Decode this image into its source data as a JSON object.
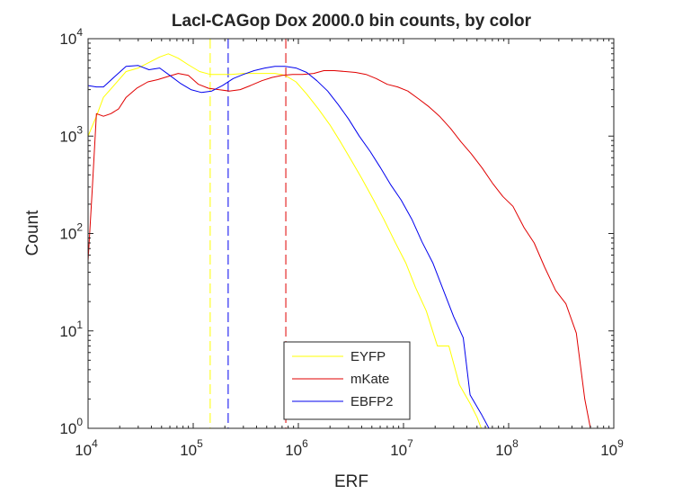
{
  "chart_data": {
    "type": "line",
    "title": "LacI-CAGop Dox 2000.0 bin counts, by color",
    "xlabel": "ERF",
    "ylabel": "Count",
    "xscale": "log",
    "yscale": "log",
    "xlim": [
      10000,
      1000000000
    ],
    "ylim": [
      1,
      10000
    ],
    "x_ticks": [
      {
        "value": 10000,
        "base": "10",
        "exp": "4"
      },
      {
        "value": 100000,
        "base": "10",
        "exp": "5"
      },
      {
        "value": 1000000,
        "base": "10",
        "exp": "6"
      },
      {
        "value": 10000000,
        "base": "10",
        "exp": "7"
      },
      {
        "value": 100000000,
        "base": "10",
        "exp": "8"
      },
      {
        "value": 1000000000,
        "base": "10",
        "exp": "9"
      }
    ],
    "y_ticks": [
      {
        "value": 1,
        "base": "10",
        "exp": "0"
      },
      {
        "value": 10,
        "base": "10",
        "exp": "1"
      },
      {
        "value": 100,
        "base": "10",
        "exp": "2"
      },
      {
        "value": 1000,
        "base": "10",
        "exp": "3"
      },
      {
        "value": 10000,
        "base": "10",
        "exp": "4"
      }
    ],
    "grid": false,
    "legend_position": "bottom-center",
    "series": [
      {
        "name": "EYFP",
        "color": "#ffff00",
        "points": [
          [
            10000,
            1000
          ],
          [
            12000,
            1600
          ],
          [
            14000,
            2500
          ],
          [
            18000,
            3400
          ],
          [
            23000,
            4600
          ],
          [
            30000,
            5000
          ],
          [
            38000,
            5700
          ],
          [
            48000,
            6500
          ],
          [
            58000,
            7000
          ],
          [
            72000,
            6300
          ],
          [
            90000,
            5400
          ],
          [
            115000,
            4600
          ],
          [
            145000,
            4300
          ],
          [
            180000,
            4300
          ],
          [
            230000,
            4300
          ],
          [
            300000,
            4400
          ],
          [
            380000,
            4400
          ],
          [
            480000,
            4400
          ],
          [
            600000,
            4400
          ],
          [
            750000,
            4200
          ],
          [
            950000,
            3600
          ],
          [
            1200000,
            2700
          ],
          [
            1550000,
            1900
          ],
          [
            2000000,
            1300
          ],
          [
            2500000,
            880
          ],
          [
            3200000,
            560
          ],
          [
            4000000,
            370
          ],
          [
            5200000,
            220
          ],
          [
            6500000,
            140
          ],
          [
            8300000,
            82
          ],
          [
            10500000,
            50
          ],
          [
            13000000,
            28
          ],
          [
            16500000,
            16
          ],
          [
            21000000,
            7.0
          ],
          [
            27000000,
            7.0
          ],
          [
            34000000,
            2.8
          ],
          [
            43000000,
            1.8
          ],
          [
            50000000,
            1.3
          ],
          [
            55000000,
            1.0
          ]
        ]
      },
      {
        "name": "mKate",
        "color": "#e00000",
        "points": [
          [
            10000,
            52
          ],
          [
            11000,
            300
          ],
          [
            12000,
            1700
          ],
          [
            14000,
            1600
          ],
          [
            16500,
            1700
          ],
          [
            19500,
            1900
          ],
          [
            23000,
            2500
          ],
          [
            29000,
            3100
          ],
          [
            37000,
            3600
          ],
          [
            46000,
            3800
          ],
          [
            58000,
            4100
          ],
          [
            72000,
            4400
          ],
          [
            90000,
            4200
          ],
          [
            112000,
            3400
          ],
          [
            140000,
            3100
          ],
          [
            175000,
            3000
          ],
          [
            220000,
            2900
          ],
          [
            280000,
            3000
          ],
          [
            350000,
            3300
          ],
          [
            450000,
            3700
          ],
          [
            560000,
            4000
          ],
          [
            700000,
            4200
          ],
          [
            880000,
            4300
          ],
          [
            1100000,
            4300
          ],
          [
            1400000,
            4400
          ],
          [
            1750000,
            4700
          ],
          [
            2200000,
            4700
          ],
          [
            2800000,
            4600
          ],
          [
            3500000,
            4500
          ],
          [
            4400000,
            4300
          ],
          [
            5500000,
            3900
          ],
          [
            7000000,
            3400
          ],
          [
            8800000,
            3200
          ],
          [
            11000000,
            2900
          ],
          [
            14000000,
            2400
          ],
          [
            17500000,
            2000
          ],
          [
            22000000,
            1600
          ],
          [
            28000000,
            1200
          ],
          [
            35000000,
            880
          ],
          [
            44000000,
            660
          ],
          [
            56000000,
            470
          ],
          [
            70000000,
            330
          ],
          [
            88000000,
            240
          ],
          [
            110000000,
            190
          ],
          [
            140000000,
            115
          ],
          [
            175000000,
            80
          ],
          [
            220000000,
            45
          ],
          [
            280000000,
            26
          ],
          [
            350000000,
            19
          ],
          [
            440000000,
            9.5
          ],
          [
            530000000,
            2.0
          ],
          [
            600000000,
            1.0
          ]
        ]
      },
      {
        "name": "EBFP2",
        "color": "#0000ee",
        "points": [
          [
            10000,
            3300
          ],
          [
            12000,
            3200
          ],
          [
            14000,
            3200
          ],
          [
            18000,
            4100
          ],
          [
            23000,
            5200
          ],
          [
            30000,
            5300
          ],
          [
            38000,
            4800
          ],
          [
            48000,
            5000
          ],
          [
            60000,
            4200
          ],
          [
            75000,
            3500
          ],
          [
            95000,
            3000
          ],
          [
            120000,
            2800
          ],
          [
            150000,
            2900
          ],
          [
            190000,
            3300
          ],
          [
            240000,
            3900
          ],
          [
            300000,
            4300
          ],
          [
            380000,
            4700
          ],
          [
            480000,
            5000
          ],
          [
            600000,
            5200
          ],
          [
            750000,
            5200
          ],
          [
            950000,
            5000
          ],
          [
            1200000,
            4500
          ],
          [
            1500000,
            3700
          ],
          [
            1900000,
            2900
          ],
          [
            2400000,
            2100
          ],
          [
            3000000,
            1500
          ],
          [
            3800000,
            1000
          ],
          [
            4800000,
            700
          ],
          [
            6000000,
            480
          ],
          [
            7500000,
            320
          ],
          [
            9500000,
            220
          ],
          [
            12000000,
            140
          ],
          [
            15000000,
            82
          ],
          [
            19000000,
            50
          ],
          [
            24000000,
            26
          ],
          [
            30000000,
            14
          ],
          [
            37000000,
            8.5
          ],
          [
            43000000,
            2.2
          ],
          [
            55000000,
            1.4
          ],
          [
            65000000,
            1.0
          ]
        ]
      }
    ],
    "vlines": [
      {
        "series": "EYFP",
        "x": 145000,
        "color": "#ffff00"
      },
      {
        "series": "EBFP2",
        "x": 215000,
        "color": "#0000ee"
      },
      {
        "series": "mKate",
        "x": 760000,
        "color": "#e00000"
      }
    ]
  }
}
